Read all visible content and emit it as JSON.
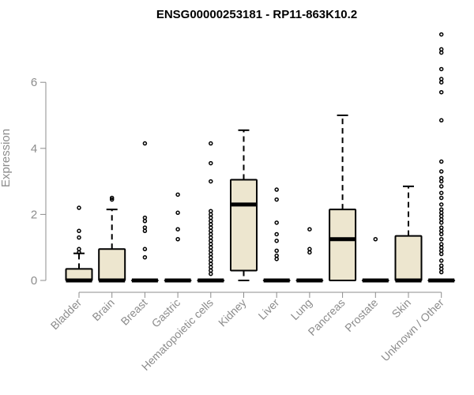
{
  "chart_data": {
    "type": "box",
    "title": "ENSG00000253181 - RP11-863K10.2",
    "xlabel": "",
    "ylabel": "Expression",
    "ylim": [
      -0.15,
      7.6
    ],
    "yticks": [
      0,
      2,
      4,
      6
    ],
    "grid": false,
    "legend": "none",
    "box_color": "#ede6cf",
    "categories": [
      "Bladder",
      "Brain",
      "Breast",
      "Gastric",
      "Hematopoietic cells",
      "Kidney",
      "Liver",
      "Lung",
      "Pancreas",
      "Prostate",
      "Skin",
      "Unknown / Other"
    ],
    "boxes": [
      {
        "q1": 0,
        "median": 0,
        "q3": 0.35,
        "whisker_low": 0,
        "whisker_high": 0.82,
        "outliers": [
          2.2,
          1.5,
          1.3,
          0.95,
          0.85
        ]
      },
      {
        "q1": 0,
        "median": 0,
        "q3": 0.95,
        "whisker_low": 0,
        "whisker_high": 2.15,
        "outliers": [
          2.5,
          2.45
        ]
      },
      {
        "q1": 0,
        "median": 0,
        "q3": 0,
        "whisker_low": 0,
        "whisker_high": 0,
        "outliers": [
          4.15,
          1.9,
          1.8,
          1.6,
          1.5,
          0.95,
          0.7
        ]
      },
      {
        "q1": 0,
        "median": 0,
        "q3": 0,
        "whisker_low": 0,
        "whisker_high": 0,
        "outliers": [
          2.6,
          2.05,
          1.55,
          1.25
        ]
      },
      {
        "q1": 0,
        "median": 0,
        "q3": 0,
        "whisker_low": 0,
        "whisker_high": 0,
        "outliers": [
          4.15,
          3.55,
          3.0,
          2.1,
          2.0,
          1.9,
          1.8,
          1.7,
          1.6,
          1.5,
          1.4,
          1.3,
          1.2,
          1.1,
          1.0,
          0.9,
          0.8,
          0.7,
          0.6,
          0.5,
          0.4,
          0.3,
          0.2
        ]
      },
      {
        "q1": 0.3,
        "median": 2.3,
        "q3": 3.05,
        "whisker_low": 0,
        "whisker_high": 4.55,
        "outliers": []
      },
      {
        "q1": 0,
        "median": 0,
        "q3": 0,
        "whisker_low": 0,
        "whisker_high": 0,
        "outliers": [
          2.75,
          2.45,
          1.75,
          1.4,
          1.2,
          0.9,
          0.75,
          0.65
        ]
      },
      {
        "q1": 0,
        "median": 0,
        "q3": 0,
        "whisker_low": 0,
        "whisker_high": 0,
        "outliers": [
          1.55,
          0.95,
          0.85
        ]
      },
      {
        "q1": 0,
        "median": 1.25,
        "q3": 2.15,
        "whisker_low": 0,
        "whisker_high": 5.0,
        "outliers": []
      },
      {
        "q1": 0,
        "median": 0,
        "q3": 0,
        "whisker_low": 0,
        "whisker_high": 0,
        "outliers": [
          1.25
        ]
      },
      {
        "q1": 0,
        "median": 0,
        "q3": 1.35,
        "whisker_low": 0,
        "whisker_high": 2.85,
        "outliers": []
      },
      {
        "q1": 0,
        "median": 0,
        "q3": 0,
        "whisker_low": 0,
        "whisker_high": 0,
        "outliers": [
          7.45,
          7.0,
          6.9,
          6.4,
          6.1,
          6.0,
          5.7,
          4.85,
          3.6,
          3.3,
          3.1,
          3.0,
          2.85,
          2.65,
          2.5,
          2.3,
          2.15,
          2.05,
          1.95,
          1.85,
          1.75,
          1.6,
          1.5,
          1.4,
          1.25,
          1.1,
          1.0,
          0.9,
          0.8,
          0.6,
          0.45,
          0.35,
          0.25
        ]
      }
    ]
  }
}
